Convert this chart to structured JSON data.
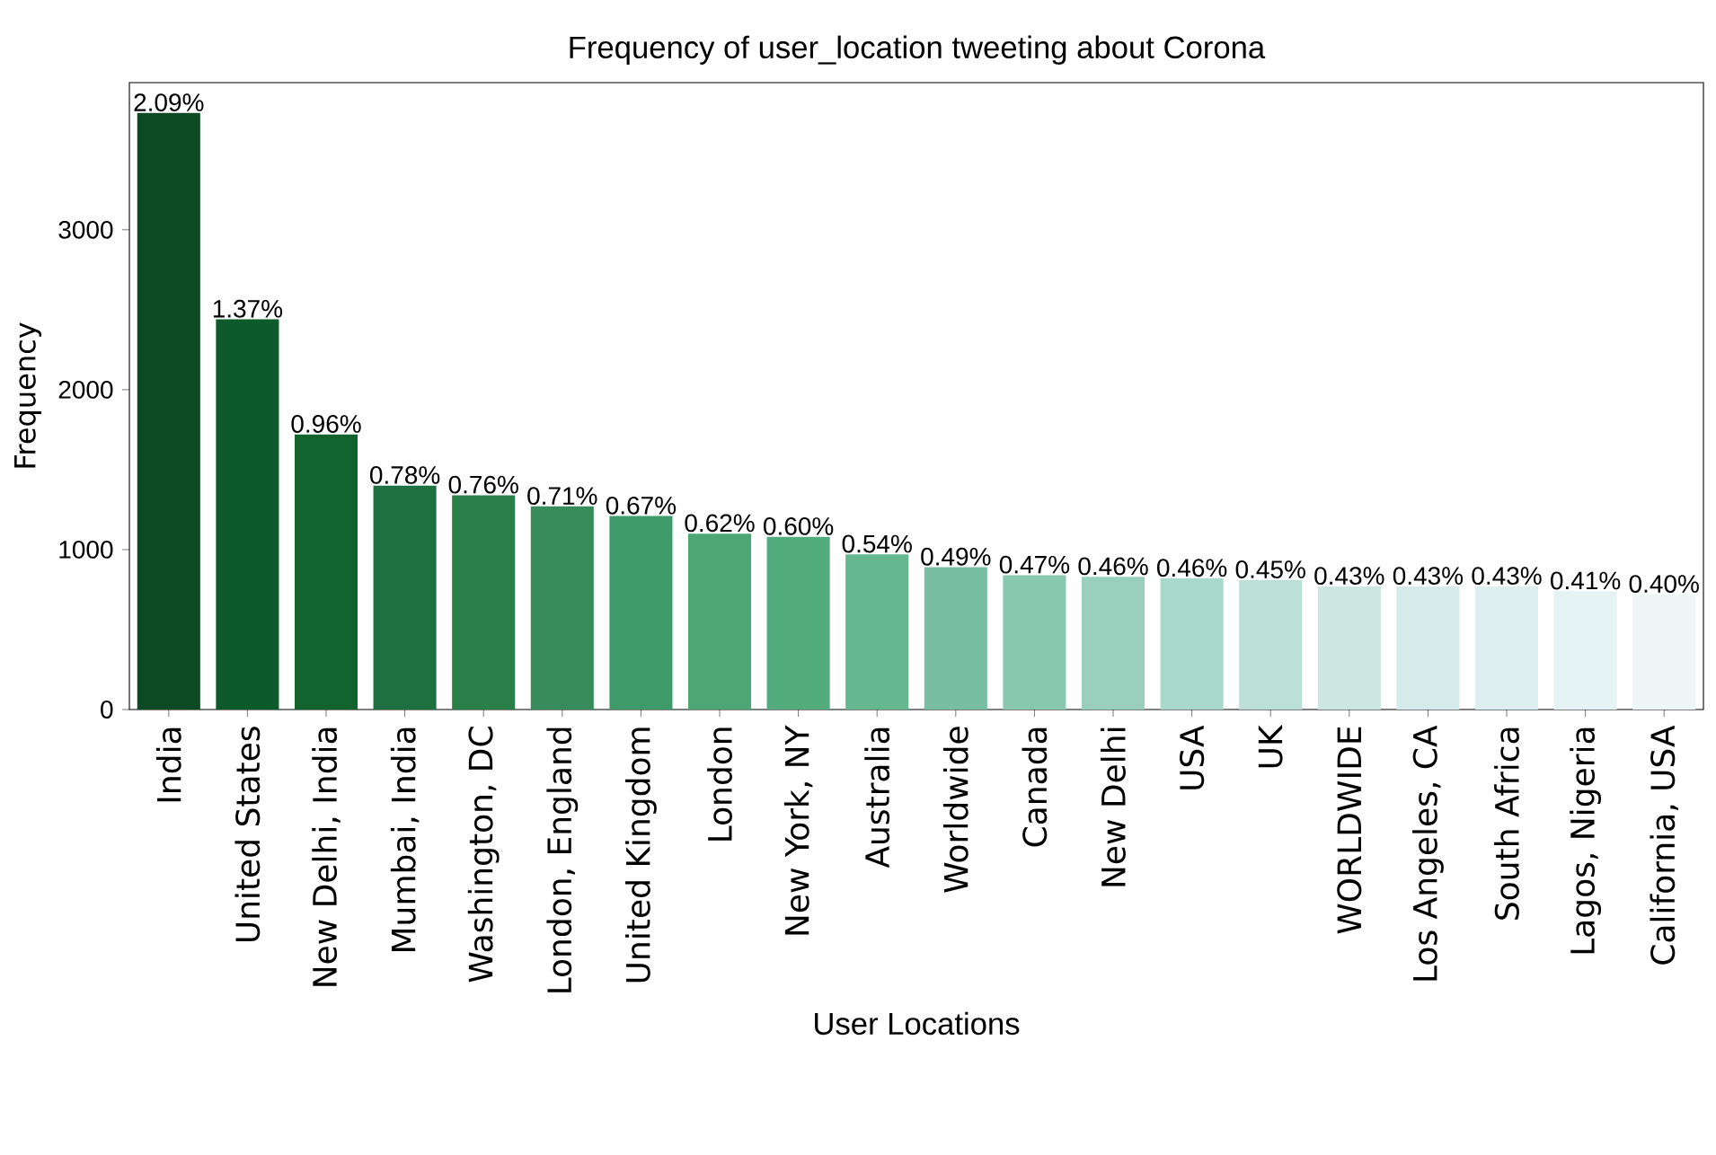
{
  "chart_data": {
    "type": "bar",
    "title": "Frequency of user_location tweeting about Corona",
    "xlabel": "User Locations",
    "ylabel": "Frequency",
    "categories": [
      "India",
      "United States",
      "New Delhi, India",
      "Mumbai, India",
      "Washington, DC",
      "London, England",
      "United Kingdom",
      "London",
      "New York, NY",
      "Australia",
      "Worldwide",
      "Canada",
      "New Delhi",
      "USA",
      "UK",
      "WORLDWIDE",
      "Los Angeles, CA",
      "South Africa",
      "Lagos, Nigeria",
      "California, USA"
    ],
    "values": [
      3730,
      2440,
      1720,
      1400,
      1340,
      1270,
      1210,
      1100,
      1080,
      970,
      890,
      840,
      830,
      820,
      810,
      770,
      770,
      770,
      740,
      720
    ],
    "annotations": [
      {
        "text": "2.09%",
        "x": "India",
        "y": 3730
      },
      {
        "text": "1.37%",
        "x": "United States",
        "y": 2440
      },
      {
        "text": "0.96%",
        "x": "New Delhi, India",
        "y": 1720
      },
      {
        "text": "0.78%",
        "x": "Mumbai, India",
        "y": 1400
      },
      {
        "text": "0.76%",
        "x": "Washington, DC",
        "y": 1340
      },
      {
        "text": "0.71%",
        "x": "London, England",
        "y": 1270
      },
      {
        "text": "0.67%",
        "x": "United Kingdom",
        "y": 1210
      },
      {
        "text": "0.62%",
        "x": "London",
        "y": 1100
      },
      {
        "text": "0.60%",
        "x": "New York, NY",
        "y": 1080
      },
      {
        "text": "0.54%",
        "x": "Australia",
        "y": 970
      },
      {
        "text": "0.49%",
        "x": "Worldwide",
        "y": 890
      },
      {
        "text": "0.47%",
        "x": "Canada",
        "y": 840
      },
      {
        "text": "0.46%",
        "x": "New Delhi",
        "y": 830
      },
      {
        "text": "0.46%",
        "x": "USA",
        "y": 820
      },
      {
        "text": "0.45%",
        "x": "UK",
        "y": 810
      },
      {
        "text": "0.43%",
        "x": "WORLDWIDE",
        "y": 770
      },
      {
        "text": "0.43%",
        "x": "Los Angeles, CA",
        "y": 770
      },
      {
        "text": "0.43%",
        "x": "South Africa",
        "y": 770
      },
      {
        "text": "0.41%",
        "x": "Lagos, Nigeria",
        "y": 740
      },
      {
        "text": "0.40%",
        "x": "California, USA",
        "y": 720
      }
    ],
    "colors": [
      "#0b4a22",
      "#0d5a2a",
      "#13632e",
      "#1f7040",
      "#2a7e48",
      "#388b5a",
      "#3e9a68",
      "#4ca775",
      "#52ac7e",
      "#64b78e",
      "#77bea4",
      "#89c8b0",
      "#98d0bd",
      "#a8d9cb",
      "#bcdfd6",
      "#cce6e2",
      "#d5eaea",
      "#dceeee",
      "#e6f3f4",
      "#eef6f8"
    ],
    "ylim": [
      0,
      3920
    ],
    "yticks": [
      0,
      1000,
      2000,
      3000
    ]
  }
}
